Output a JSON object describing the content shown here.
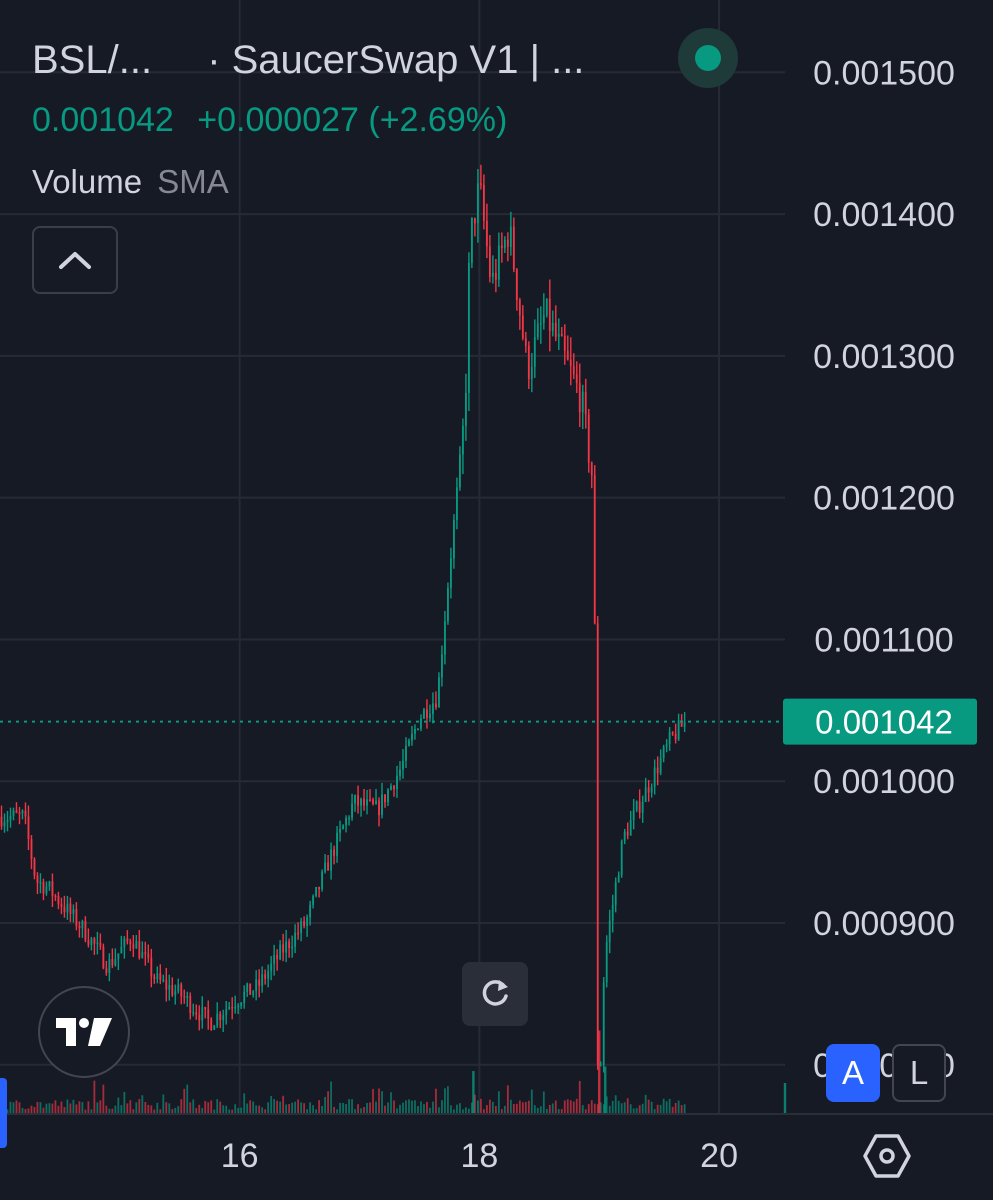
{
  "header": {
    "symbol": "BSL/...",
    "exchange": "· SaucerSwap V1 | ...",
    "last_price": "0.001042",
    "change": "+0.000027 (+2.69%)",
    "indicator_name": "Volume",
    "indicator_sub": "SMA"
  },
  "controls": {
    "auto_scale_label": "A",
    "log_scale_label": "L"
  },
  "icons": {
    "collapse": "chevron-up-icon",
    "live": "live-status-dot",
    "logo": "tradingview-logo",
    "reset": "reset-rotate-icon",
    "settings": "hexagon-settings-icon"
  },
  "colors": {
    "background": "#161a25",
    "grid": "#262a35",
    "text": "#d1d4dc",
    "up": "#089981",
    "down": "#f23645",
    "accent": "#2962ff"
  },
  "chart_data": {
    "type": "candlestick",
    "title": "",
    "xlabel": "",
    "ylabel": "",
    "x_tick_labels": [
      "16",
      "18",
      "20"
    ],
    "y_tick_labels": [
      "0.001500",
      "0.001400",
      "0.001300",
      "0.001200",
      "0.001100",
      "0.001000",
      "0.000900",
      "0.000800"
    ],
    "y_ticks": [
      0.0015,
      0.0014,
      0.0013,
      0.0012,
      0.0011,
      0.001,
      0.0009,
      0.0008
    ],
    "ylim": [
      0.000766,
      0.001551
    ],
    "xlim": [
      14.0,
      20.55
    ],
    "current_price": 0.001042,
    "current_price_label": "0.001042",
    "grid": true,
    "legend": "top-left",
    "anchors": [
      [
        14.0,
        0.000975
      ],
      [
        14.2,
        0.000975
      ],
      [
        14.3,
        0.00093
      ],
      [
        14.4,
        0.000925
      ],
      [
        14.7,
        0.000895
      ],
      [
        14.9,
        0.00087
      ],
      [
        15.1,
        0.00089
      ],
      [
        15.3,
        0.00086
      ],
      [
        15.5,
        0.00085
      ],
      [
        15.75,
        0.00083
      ],
      [
        15.95,
        0.000845
      ],
      [
        16.15,
        0.000855
      ],
      [
        16.35,
        0.00088
      ],
      [
        16.55,
        0.0009
      ],
      [
        16.75,
        0.000945
      ],
      [
        16.95,
        0.000985
      ],
      [
        17.15,
        0.00098
      ],
      [
        17.35,
        0.00101
      ],
      [
        17.5,
        0.001045
      ],
      [
        17.65,
        0.00106
      ],
      [
        17.75,
        0.00115
      ],
      [
        17.88,
        0.00126
      ],
      [
        17.92,
        0.00138
      ],
      [
        18.0,
        0.00142
      ],
      [
        18.1,
        0.00135
      ],
      [
        18.25,
        0.00139
      ],
      [
        18.4,
        0.00129
      ],
      [
        18.55,
        0.00133
      ],
      [
        18.7,
        0.0013
      ],
      [
        18.85,
        0.00127
      ],
      [
        18.95,
        0.00121
      ],
      [
        19.0,
        0.0008
      ],
      [
        19.05,
        0.00088
      ],
      [
        19.2,
        0.00096
      ],
      [
        19.4,
        0.000995
      ],
      [
        19.6,
        0.00103
      ],
      [
        19.72,
        0.001042
      ]
    ],
    "volume_spikes": [
      [
        17.95,
        0.28
      ],
      [
        19.0,
        0.55
      ],
      [
        19.05,
        0.31
      ],
      [
        20.55,
        0.2
      ]
    ]
  }
}
